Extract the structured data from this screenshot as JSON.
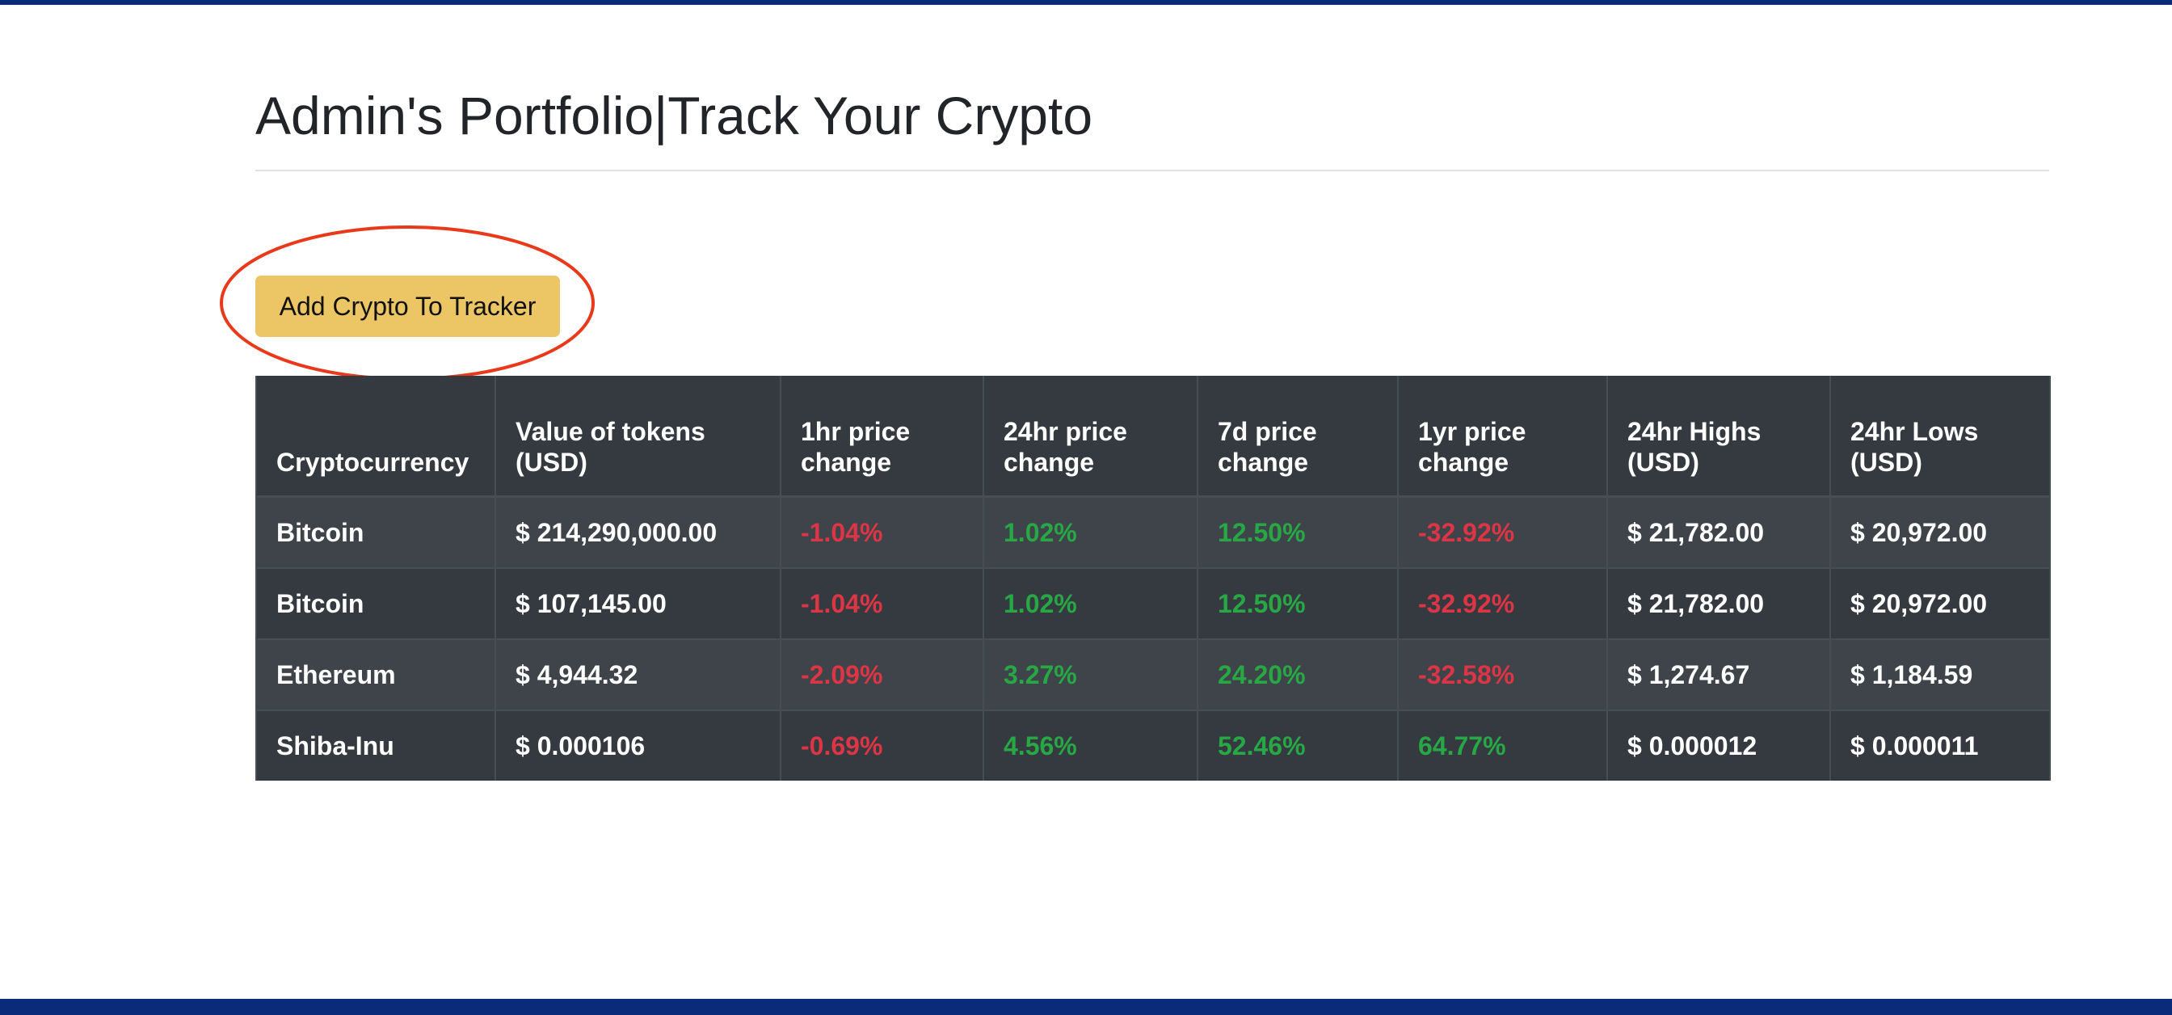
{
  "header": {
    "title": "Admin's Portfolio|Track Your Crypto"
  },
  "toolbar": {
    "add_label": "Add Crypto To Tracker"
  },
  "table": {
    "columns": [
      "Cryptocurrency",
      "Value of tokens (USD)",
      "1hr price change",
      "24hr price change",
      "7d price change",
      "1yr price change",
      "24hr Highs (USD)",
      "24hr Lows (USD)"
    ],
    "rows": [
      {
        "name": "Bitcoin",
        "value": "$ 214,290,000.00",
        "change_1h": "-1.04%",
        "change_24h": "1.02%",
        "change_7d": "12.50%",
        "change_1y": "-32.92%",
        "high_24h": "$ 21,782.00",
        "low_24h": "$ 20,972.00"
      },
      {
        "name": "Bitcoin",
        "value": "$ 107,145.00",
        "change_1h": "-1.04%",
        "change_24h": "1.02%",
        "change_7d": "12.50%",
        "change_1y": "-32.92%",
        "high_24h": "$ 21,782.00",
        "low_24h": "$ 20,972.00"
      },
      {
        "name": "Ethereum",
        "value": "$ 4,944.32",
        "change_1h": "-2.09%",
        "change_24h": "3.27%",
        "change_7d": "24.20%",
        "change_1y": "-32.58%",
        "high_24h": "$ 1,274.67",
        "low_24h": "$ 1,184.59"
      },
      {
        "name": "Shiba-Inu",
        "value": "$ 0.000106",
        "change_1h": "-0.69%",
        "change_24h": "4.56%",
        "change_7d": "52.46%",
        "change_1y": "64.77%",
        "high_24h": "$ 0.000012",
        "low_24h": "$ 0.000011"
      }
    ]
  },
  "colors": {
    "brand_bar": "#0a2a7a",
    "button": "#ecc664",
    "table_bg": "#343a40",
    "negative": "#dc3545",
    "positive": "#28a745",
    "annotation": "#e8391a"
  }
}
